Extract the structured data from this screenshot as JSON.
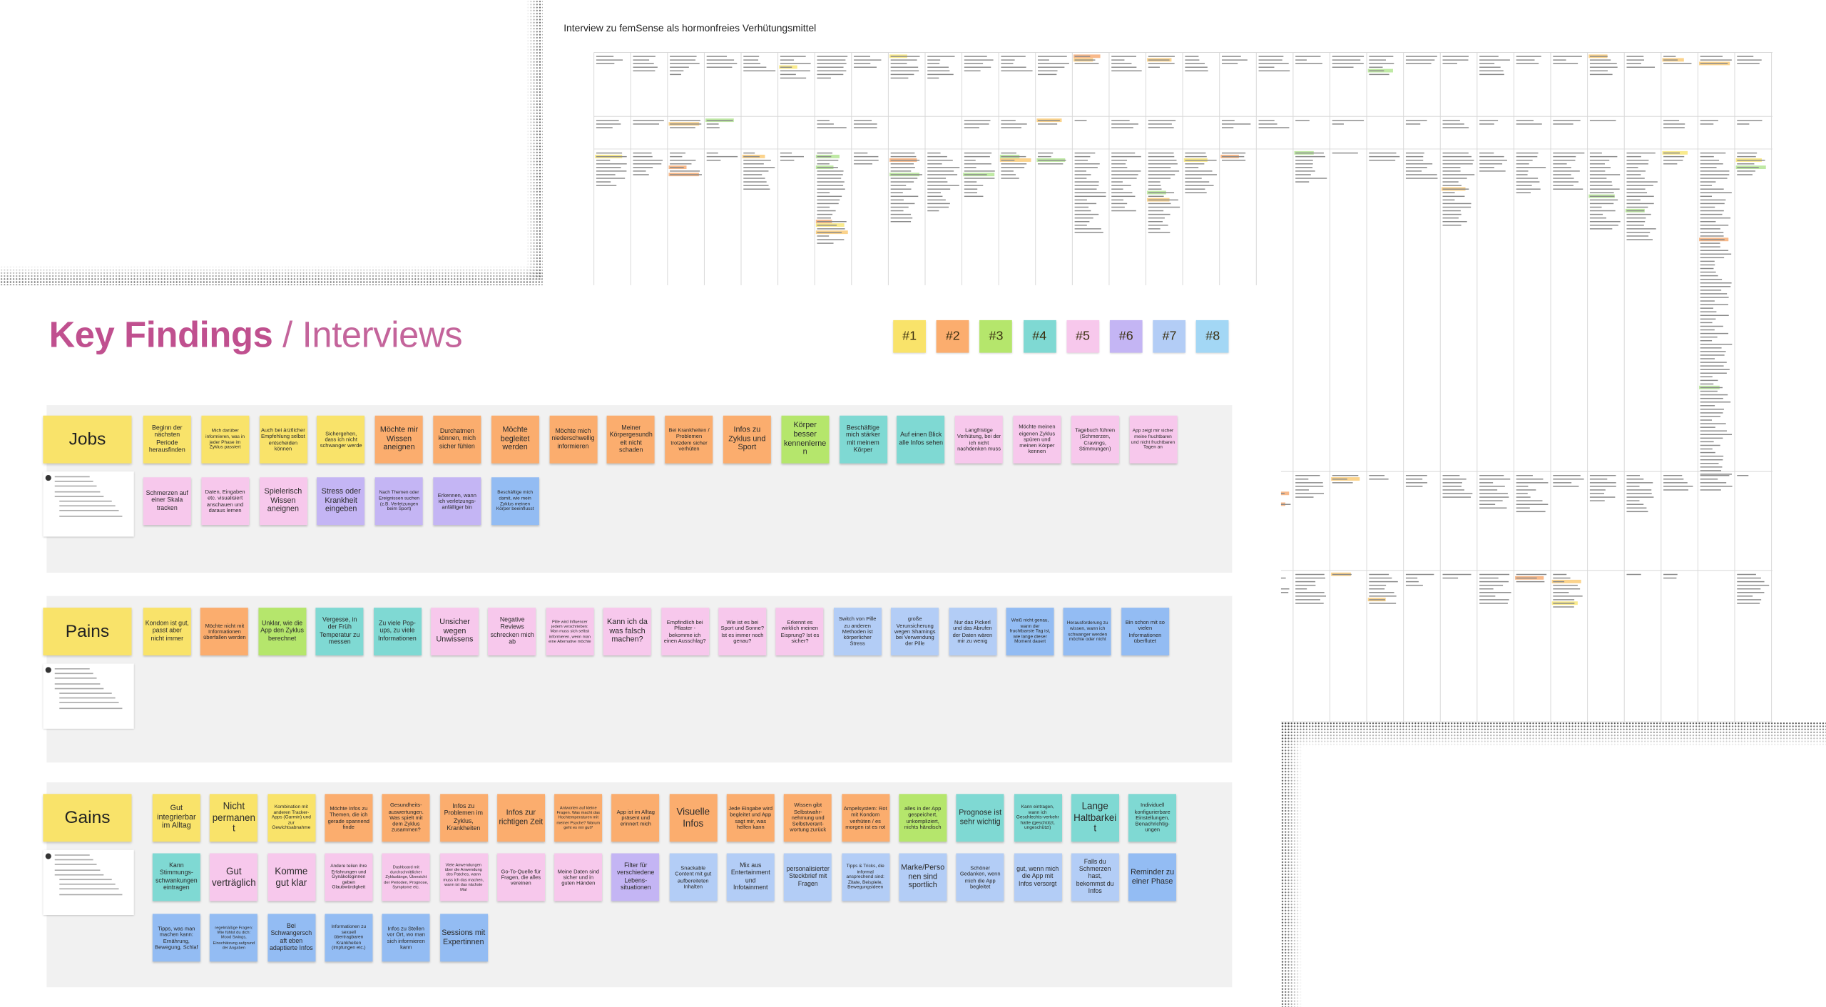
{
  "spreadsheet": {
    "title": "Interview zu femSense als hormonfreies Verhütungsmittel"
  },
  "board": {
    "title": "Key Findings",
    "subtitle": "/ Interviews",
    "legend": [
      {
        "label": "#1",
        "color": "#f9e36a"
      },
      {
        "label": "#2",
        "color": "#fbad6e"
      },
      {
        "label": "#3",
        "color": "#b5e66c"
      },
      {
        "label": "#4",
        "color": "#7fd9d3"
      },
      {
        "label": "#5",
        "color": "#f7c8ec"
      },
      {
        "label": "#6",
        "color": "#c4b5f4"
      },
      {
        "label": "#7",
        "color": "#b3cdf6"
      },
      {
        "label": "#8",
        "color": "#a3d7f5"
      }
    ],
    "sections": [
      {
        "name": "Jobs",
        "rows": [
          [
            {
              "text": "Beginn der nächsten Periode herausfinden",
              "color": "#f9e36a"
            },
            {
              "text": "Mich darüber informieren, was in jeder Phase im Zyklus passiert",
              "color": "#f9e36a"
            },
            {
              "text": "Auch bei ärztlicher Empfehlung selbst entscheiden können",
              "color": "#f9e36a"
            },
            {
              "text": "Sichergehen, dass ich nicht schwanger werde",
              "color": "#f9e36a"
            },
            {
              "text": "Möchte mir Wissen aneignen",
              "color": "#fbad6e"
            },
            {
              "text": "Durchatmen können, mich sicher fühlen",
              "color": "#fbad6e"
            },
            {
              "text": "Möchte begleitet werden",
              "color": "#fbad6e"
            },
            {
              "text": "Möchte mich niederschwellig informieren",
              "color": "#fbad6e"
            },
            {
              "text": "Meiner Körpergesundheit nicht schaden",
              "color": "#fbad6e"
            },
            {
              "text": "Bei Krankheiten / Problemen trotzdem sicher verhüten",
              "color": "#fbad6e"
            },
            {
              "text": "Infos zu Zyklus und Sport",
              "color": "#fbad6e"
            },
            {
              "text": "Körper besser kennenlernen",
              "color": "#b5e66c"
            },
            {
              "text": "Beschäftige mich stärker mit meinem Körper",
              "color": "#7fd9d3"
            },
            {
              "text": "Auf einen Blick alle Infos sehen",
              "color": "#7fd9d3"
            },
            {
              "text": "Langfristige Verhütung, bei der ich nicht nachdenken muss",
              "color": "#f7c8ec"
            },
            {
              "text": "Möchte meinen eigenen Zyklus spüren und meinen Körper kennen",
              "color": "#f7c8ec"
            },
            {
              "text": "Tagebuch führen (Schmerzen, Cravings, Stimmungen)",
              "color": "#f7c8ec"
            },
            {
              "text": "App zeigt mir sicher meine fruchtbaren und nicht fruchtbaren Tagen an",
              "color": "#f7c8ec"
            }
          ],
          [
            {
              "text": "Schmerzen auf einer Skala tracken",
              "color": "#f7c8ec"
            },
            {
              "text": "Daten, Eingaben etc. visualisiert anschauen und daraus lernen",
              "color": "#f7c8ec"
            },
            {
              "text": "Spielerisch Wissen aneignen",
              "color": "#f7c8ec"
            },
            {
              "text": "Stress oder Krankheit eingeben",
              "color": "#c4b5f4"
            },
            {
              "text": "Nach Themen oder Ereignissen suchen (z.B. Verletzungen beim Sport)",
              "color": "#c4b5f4"
            },
            {
              "text": "Erkennen, wann ich verletzungs-anfälliger bin",
              "color": "#c4b5f4"
            },
            {
              "text": "Beschäftige mich damit, wie mein Zyklus meinen Körper beeinflusst",
              "color": "#93bcf3"
            }
          ]
        ]
      },
      {
        "name": "Pains",
        "rows": [
          [
            {
              "text": "Kondom ist gut, passt aber nicht immer",
              "color": "#f9e36a"
            },
            {
              "text": "Möchte nicht mit Informationen überfallen werden",
              "color": "#fbad6e"
            },
            {
              "text": "Unklar, wie die App den Zyklus berechnet",
              "color": "#b5e66c"
            },
            {
              "text": "Vergesse, in der Früh Temperatur zu messen",
              "color": "#7fd9d3"
            },
            {
              "text": "Zu viele Pop-ups, zu viele Informationen",
              "color": "#7fd9d3"
            },
            {
              "text": "Unsicher wegen Unwissens",
              "color": "#f7c8ec"
            },
            {
              "text": "Negative Reviews schrecken mich ab",
              "color": "#f7c8ec"
            },
            {
              "text": "Pille wird Influencer jedem verschrieben: Man muss sich selbst informieren, wenn man eine Alternative möchte",
              "color": "#f7c8ec"
            },
            {
              "text": "Kann ich da was falsch machen?",
              "color": "#f7c8ec"
            },
            {
              "text": "Empfindlich bei Pflaster - bekomme ich einen Ausschlag?",
              "color": "#f7c8ec"
            },
            {
              "text": "Wie ist es bei Sport und Sonne? Ist es immer noch genau?",
              "color": "#f7c8ec"
            },
            {
              "text": "Erkennt es wirklich meinen Eisprung? Ist es sicher?",
              "color": "#f7c8ec"
            },
            {
              "text": "Switch von Pille zu anderen Methoden ist körperlicher Stress",
              "color": "#b3cdf6"
            },
            {
              "text": "große Verunsicherung wegen Shamings bei Verwendung der Pille",
              "color": "#b3cdf6"
            },
            {
              "text": "Nur das Pickerl und das Abrufen der Daten wären mir zu wenig",
              "color": "#b3cdf6"
            },
            {
              "text": "Weiß nicht genau, wann der fruchtbarste Tag ist, wie lange dieser Moment dauert",
              "color": "#93bcf3"
            },
            {
              "text": "Herausforderung zu wissen, wann ich schwanger werden möchte oder nicht",
              "color": "#93bcf3"
            },
            {
              "text": "Bin schon mit so vielen Informationen überflutet",
              "color": "#93bcf3"
            }
          ]
        ]
      },
      {
        "name": "Gains",
        "rows": [
          [
            {
              "text": "Gut integrierbar im Alltag",
              "color": "#f9e36a"
            },
            {
              "text": "Nicht permanent",
              "color": "#f9e36a"
            },
            {
              "text": "Kombination mit anderen Tracker-Apps (Garmin) und zur Gewichtsabnahme",
              "color": "#f9e36a"
            },
            {
              "text": "Möchte Infos zu Themen, die ich gerade spannend finde",
              "color": "#fbad6e"
            },
            {
              "text": "Gesundheits-auswertungen. Was spielt mit dem Zyklus zusammen?",
              "color": "#fbad6e"
            },
            {
              "text": "Infos zu Problemen im Zyklus, Krankheiten",
              "color": "#fbad6e"
            },
            {
              "text": "Infos zur richtigen Zeit",
              "color": "#fbad6e"
            },
            {
              "text": "Antworten auf kleine Fragen. Was macht das Hochtemperaturen mit meiner Psyche? Warum geht es mir gut?",
              "color": "#fbad6e"
            },
            {
              "text": "App ist im Alltag präsent und erinnert mich",
              "color": "#fbad6e"
            },
            {
              "text": "Visuelle Infos",
              "color": "#fbad6e"
            },
            {
              "text": "Jede Eingabe wird begleitet und App sagt mir, was helfen kann",
              "color": "#fbad6e"
            },
            {
              "text": "Wissen gibt Selbstwahr-nehmung und Selbstverant-wortung zurück",
              "color": "#fbad6e"
            },
            {
              "text": "Ampelsystem: Rot mit Kondom verhüten / es morgen ist es rot",
              "color": "#fbad6e"
            },
            {
              "text": "alles in der App gespeichert, unkompliziert, nichts händisch",
              "color": "#b5e66c"
            },
            {
              "text": "Prognose ist sehr wichtig",
              "color": "#7fd9d3"
            },
            {
              "text": "Kann eintragen, wann ich Geschlechts-verkehr hatte (geschützt, ungeschützt)",
              "color": "#7fd9d3"
            },
            {
              "text": "Lange Haltbarkeit",
              "color": "#7fd9d3"
            },
            {
              "text": "Individuell konfigurierbare Einstellungen, Benachrichtig-ungen",
              "color": "#7fd9d3"
            }
          ],
          [
            {
              "text": "Kann Stimmungs-schwankungen eintragen",
              "color": "#7fd9d3"
            },
            {
              "text": "Gut verträglich",
              "color": "#f7c8ec"
            },
            {
              "text": "Komme gut klar",
              "color": "#f7c8ec"
            },
            {
              "text": "Andere teilen ihre Erfahrungen und Gynäkologinnen geben Glaubwürdigkeit",
              "color": "#f7c8ec"
            },
            {
              "text": "Dashboard mit durchschnittlicher Zykluslänge, Übersicht der Perioden, Prognose, Symptome etc.",
              "color": "#f7c8ec"
            },
            {
              "text": "Viele Anwendungen über die Anwendung des Patches, wann muss ich das machen, wann ist das nächste Mal",
              "color": "#f7c8ec"
            },
            {
              "text": "Go-To-Quelle für Fragen, die alles vereinen",
              "color": "#f7c8ec"
            },
            {
              "text": "Meine Daten sind sicher und in guten Händen",
              "color": "#f7c8ec"
            },
            {
              "text": "Filter für verschiedene Lebens-situationen",
              "color": "#c4b5f4"
            },
            {
              "text": "Snackable Content mit gut aufbereiteten Inhalten",
              "color": "#b3cdf6"
            },
            {
              "text": "Mix aus Entertainment und Infotainment",
              "color": "#b3cdf6"
            },
            {
              "text": "personalisierter Steckbrief mit Fragen",
              "color": "#b3cdf6"
            },
            {
              "text": "Tipps & Tricks, die informal ansprechend sind: Zitate, Beispiele, Bewegungsideen",
              "color": "#b3cdf6"
            },
            {
              "text": "Marke/Personen sind sportlich",
              "color": "#b3cdf6"
            },
            {
              "text": "Schöner Gedanken, wenn mich die App begleitet",
              "color": "#b3cdf6"
            },
            {
              "text": "gut, wenn mich die App mit Infos versorgt",
              "color": "#b3cdf6"
            },
            {
              "text": "Falls du Schmerzen hast, bekommst du Infos",
              "color": "#b3cdf6"
            },
            {
              "text": "Reminder zu einer Phase",
              "color": "#93bcf3"
            }
          ],
          [
            {
              "text": "Tipps, was man machen kann: Ernährung, Bewegung, Schlaf",
              "color": "#93bcf3"
            },
            {
              "text": "regelmäßige Fragen: Wie fühlst du dich: Mood Swings, Einschätzung aufgrund der Angaben",
              "color": "#93bcf3"
            },
            {
              "text": "Bei Schwangerschaft eben adaptierte Infos",
              "color": "#93bcf3"
            },
            {
              "text": "Informationen zu sexuell übertragbaren Krankheiten (Impfungen etc.)",
              "color": "#93bcf3"
            },
            {
              "text": "Infos zu Stellen vor Ort, wo man sich informieren kann",
              "color": "#93bcf3"
            },
            {
              "text": "Sessions mit Expertinnen",
              "color": "#93bcf3"
            }
          ]
        ]
      }
    ]
  }
}
